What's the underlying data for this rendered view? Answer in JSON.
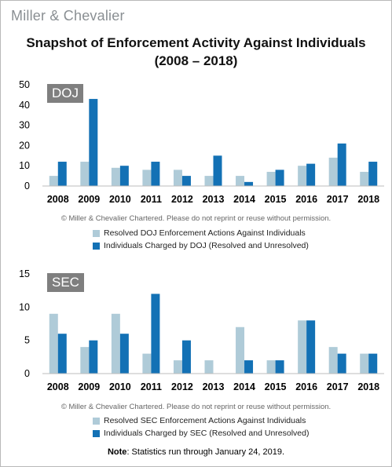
{
  "header": {
    "logo": "Miller & Chevalier",
    "title_line1": "Snapshot of Enforcement Activity Against Individuals",
    "title_line2": "(2008 – 2018)"
  },
  "colors": {
    "light": "#afcbd8",
    "dark": "#1371b5"
  },
  "chart_data": [
    {
      "type": "bar",
      "panel_label": "DOJ",
      "categories": [
        "2008",
        "2009",
        "2010",
        "2011",
        "2012",
        "2013",
        "2014",
        "2015",
        "2016",
        "2017",
        "2018"
      ],
      "series": [
        {
          "name": "Resolved DOJ Enforcement Actions Against Individuals",
          "values": [
            5,
            12,
            9,
            8,
            8,
            5,
            5,
            7,
            10,
            14,
            7
          ]
        },
        {
          "name": "Individuals Charged by DOJ (Resolved and Unresolved)",
          "values": [
            12,
            43,
            10,
            12,
            5,
            15,
            2,
            8,
            11,
            21,
            12
          ]
        }
      ],
      "ylim": [
        0,
        50
      ],
      "yticks": [
        0,
        10,
        20,
        30,
        40,
        50
      ],
      "grid": false,
      "legend_position": "bottom",
      "footnote": "© Miller & Chevalier Chartered. Please do not reprint or reuse without permission."
    },
    {
      "type": "bar",
      "panel_label": "SEC",
      "categories": [
        "2008",
        "2009",
        "2010",
        "2011",
        "2012",
        "2013",
        "2014",
        "2015",
        "2016",
        "2017",
        "2018"
      ],
      "series": [
        {
          "name": "Resolved SEC Enforcement Actions Against Individuals",
          "values": [
            9,
            4,
            9,
            3,
            2,
            2,
            7,
            2,
            8,
            4,
            3
          ]
        },
        {
          "name": "Individuals Charged by SEC (Resolved and Unresolved)",
          "values": [
            6,
            5,
            6,
            12,
            5,
            0,
            2,
            2,
            8,
            3,
            3
          ]
        }
      ],
      "ylim": [
        0,
        15
      ],
      "yticks": [
        0,
        5,
        10,
        15
      ],
      "grid": false,
      "legend_position": "bottom",
      "footnote": "© Miller & Chevalier Chartered. Please do not reprint or reuse without permission."
    }
  ],
  "note": {
    "label": "Note",
    "text": ": Statistics run through January 24, 2019."
  }
}
